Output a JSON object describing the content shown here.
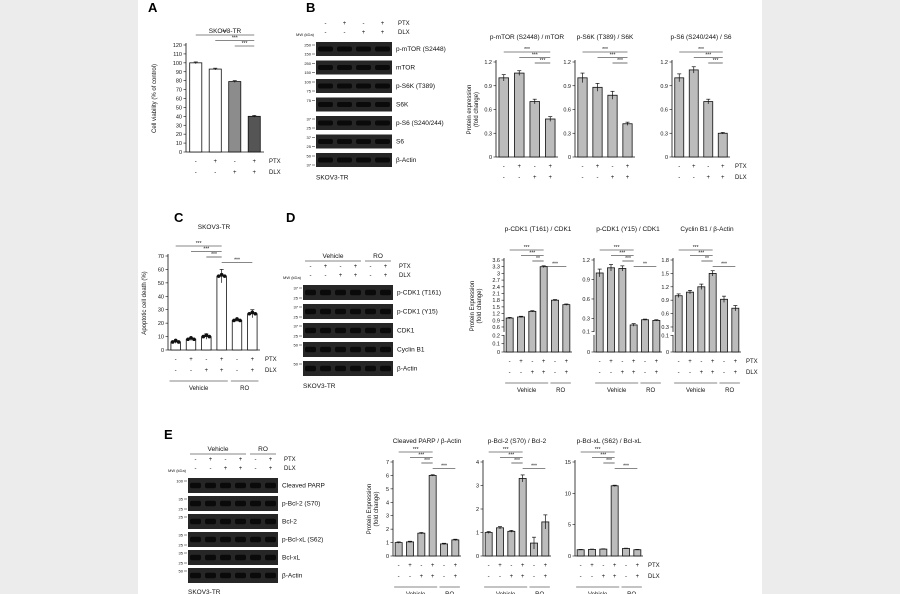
{
  "panel_letters": [
    "A",
    "B",
    "C",
    "D",
    "E"
  ],
  "cell_line": "SKOV3-TR",
  "markers": {
    "ptx": "PTX",
    "dlx": "DLX",
    "mw": "MW (kDa)",
    "vehicle": "Vehicle",
    "ro": "RO"
  },
  "signs": {
    "plus": "+",
    "minus": "-"
  },
  "sig": {
    "three": "***",
    "two": "**"
  },
  "colors": {
    "white": "#ffffff",
    "grey": "#8c8c8c",
    "dark": "#555555",
    "bar": "#bcbcbc",
    "blot": "#262626"
  },
  "blots": {
    "B": {
      "lanes": 4,
      "ptx": [
        "-",
        "+",
        "-",
        "+"
      ],
      "dlx": [
        "-",
        "-",
        "+",
        "+"
      ],
      "bands": [
        {
          "label": "p-mTOR (S2448)",
          "mw": [
            "250",
            "150"
          ]
        },
        {
          "label": "mTOR",
          "mw": [
            "250",
            "150"
          ]
        },
        {
          "label": "p-S6K (T389)",
          "mw": [
            "100",
            "75"
          ]
        },
        {
          "label": "S6K",
          "mw": [
            "75"
          ]
        },
        {
          "label": "p-S6 (S240/244)",
          "mw": [
            "37",
            "25"
          ]
        },
        {
          "label": "S6",
          "mw": [
            "37",
            "25"
          ]
        },
        {
          "label": "β-Actin",
          "mw": [
            "50",
            "37"
          ]
        }
      ]
    },
    "D": {
      "lanes": 6,
      "ptx": [
        "-",
        "+",
        "-",
        "+",
        "-",
        "+"
      ],
      "dlx": [
        "-",
        "-",
        "+",
        "+",
        "-",
        "+"
      ],
      "groups": [
        "Vehicle",
        "RO"
      ],
      "bands": [
        {
          "label": "p-CDK1 (T161)",
          "mw": [
            "37",
            "25"
          ]
        },
        {
          "label": "p-CDK1 (Y15)",
          "mw": [
            "37",
            "25"
          ]
        },
        {
          "label": "CDK1",
          "mw": [
            "37",
            "25"
          ]
        },
        {
          "label": "Cyclin B1",
          "mw": [
            "50"
          ]
        },
        {
          "label": "β-Actin",
          "mw": [
            "50"
          ]
        }
      ]
    },
    "E": {
      "lanes": 6,
      "ptx": [
        "-",
        "+",
        "-",
        "+",
        "-",
        "+"
      ],
      "dlx": [
        "-",
        "-",
        "+",
        "+",
        "-",
        "+"
      ],
      "groups": [
        "Vehicle",
        "RO"
      ],
      "bands": [
        {
          "label": "Cleaved PARP",
          "mw": [
            "100"
          ]
        },
        {
          "label": "p-Bcl-2 (S70)",
          "mw": [
            "35",
            "25"
          ]
        },
        {
          "label": "Bcl-2",
          "mw": [
            "25"
          ]
        },
        {
          "label": "p-Bcl-xL (S62)",
          "mw": [
            "35",
            "25"
          ]
        },
        {
          "label": "Bcl-xL",
          "mw": [
            "35",
            "25"
          ]
        },
        {
          "label": "β-Actin",
          "mw": [
            "50"
          ]
        }
      ]
    }
  },
  "chart_data": [
    {
      "id": "A",
      "type": "bar",
      "title": "SKOV3-TR",
      "ylabel": "Cell viability (% of control)",
      "ylim": [
        0,
        120
      ],
      "yticks": [
        0,
        10,
        20,
        30,
        40,
        50,
        60,
        70,
        80,
        90,
        100,
        110,
        120
      ],
      "ptx": [
        "-",
        "+",
        "-",
        "+"
      ],
      "dlx": [
        "-",
        "-",
        "+",
        "+"
      ],
      "values": [
        100,
        93,
        79,
        40
      ],
      "errors": [
        1,
        1,
        1,
        1
      ],
      "colors": [
        "#ffffff",
        "#ffffff",
        "#8c8c8c",
        "#555555"
      ],
      "sig": [
        [
          0,
          3,
          "***"
        ],
        [
          1,
          3,
          "***"
        ],
        [
          2,
          3,
          "***"
        ]
      ]
    },
    {
      "id": "B1",
      "type": "bar",
      "title": "p-mTOR (S2448) / mTOR",
      "ylabel": "Protein expression (fold change)",
      "ylim": [
        0,
        1.2
      ],
      "yticks": [
        0,
        0.3,
        0.6,
        0.9,
        1.2
      ],
      "ptx": [
        "-",
        "+",
        "-",
        "+"
      ],
      "dlx": [
        "-",
        "-",
        "+",
        "+"
      ],
      "values": [
        1.0,
        1.06,
        0.7,
        0.48
      ],
      "errors": [
        0.04,
        0.03,
        0.03,
        0.03
      ],
      "sig": [
        [
          0,
          3,
          "***"
        ],
        [
          1,
          3,
          "***"
        ],
        [
          2,
          3,
          "***"
        ]
      ]
    },
    {
      "id": "B2",
      "type": "bar",
      "title": "p-S6K (T389) / S6K",
      "ylim": [
        0,
        1.2
      ],
      "yticks": [
        0,
        0.3,
        0.6,
        0.9,
        1.2
      ],
      "ptx": [
        "-",
        "+",
        "-",
        "+"
      ],
      "dlx": [
        "-",
        "-",
        "+",
        "+"
      ],
      "values": [
        1.0,
        0.88,
        0.78,
        0.42
      ],
      "errors": [
        0.06,
        0.05,
        0.05,
        0.02
      ],
      "sig": [
        [
          0,
          3,
          "***"
        ],
        [
          1,
          3,
          "***"
        ],
        [
          2,
          3,
          "***"
        ]
      ]
    },
    {
      "id": "B3",
      "type": "bar",
      "title": "p-S6 (S240/244) / S6",
      "ylim": [
        0,
        1.2
      ],
      "yticks": [
        0,
        0.3,
        0.6,
        0.9,
        1.2
      ],
      "ptx": [
        "-",
        "+",
        "-",
        "+"
      ],
      "dlx": [
        "-",
        "-",
        "+",
        "+"
      ],
      "values": [
        1.0,
        1.1,
        0.7,
        0.3
      ],
      "errors": [
        0.05,
        0.04,
        0.03,
        0.01
      ],
      "sig": [
        [
          0,
          3,
          "***"
        ],
        [
          1,
          3,
          "***"
        ],
        [
          2,
          3,
          "***"
        ]
      ]
    },
    {
      "id": "C",
      "type": "scatter-bar",
      "title": "SKOV3-TR",
      "ylabel": "Apoptotic cell death (%)",
      "ylim": [
        0,
        70
      ],
      "yticks": [
        0,
        10,
        20,
        30,
        40,
        50,
        60,
        70
      ],
      "ptx": [
        "-",
        "+",
        "-",
        "+",
        "-",
        "+"
      ],
      "dlx": [
        "-",
        "-",
        "+",
        "+",
        "-",
        "+"
      ],
      "groups": [
        "Vehicle",
        "RO"
      ],
      "values": [
        6,
        8,
        10,
        55,
        22,
        27
      ],
      "errors": [
        1,
        1,
        2,
        5,
        1,
        3
      ],
      "colors": [
        "#ffffff",
        "#ffffff",
        "#ffffff",
        "#ffffff",
        "#ffffff",
        "#ffffff"
      ],
      "sig": [
        [
          0,
          3,
          "***"
        ],
        [
          1,
          3,
          "***"
        ],
        [
          2,
          3,
          "***"
        ],
        [
          3,
          5,
          "***"
        ]
      ]
    },
    {
      "id": "D1",
      "type": "bar",
      "title": "p-CDK1 (T161) / CDK1",
      "ylabel": "Protein Expression (fold change)",
      "ylim": [
        0,
        3.6
      ],
      "axis_break": {
        "from": 0.2,
        "to": 0.4
      },
      "yticks": [
        0.0,
        0.1,
        0.2,
        0.6,
        0.9,
        1.2,
        1.5,
        1.8,
        2.1,
        2.4,
        2.7,
        3.0,
        3.3,
        3.6
      ],
      "ptx": [
        "-",
        "+",
        "-",
        "+",
        "-",
        "+"
      ],
      "dlx": [
        "-",
        "-",
        "+",
        "+",
        "-",
        "+"
      ],
      "groups": [
        "Vehicle",
        "RO"
      ],
      "values": [
        1.0,
        1.05,
        1.3,
        3.3,
        1.8,
        1.6
      ],
      "errors": [
        0.03,
        0.03,
        0.03,
        0.04,
        0.03,
        0.03
      ],
      "sig": [
        [
          0,
          3,
          "***"
        ],
        [
          1,
          3,
          "***"
        ],
        [
          2,
          3,
          "**"
        ],
        [
          3,
          5,
          "***"
        ]
      ]
    },
    {
      "id": "D2",
      "type": "bar",
      "title": "p-CDK1 (Y15) / CDK1",
      "ylim": [
        0,
        1.2
      ],
      "axis_break": {
        "from": 0.05,
        "to": 0.1
      },
      "yticks": [
        0.0,
        0.1,
        0.3,
        0.6,
        0.9,
        1.2
      ],
      "ptx": [
        "-",
        "+",
        "-",
        "+",
        "-",
        "+"
      ],
      "dlx": [
        "-",
        "-",
        "+",
        "+",
        "-",
        "+"
      ],
      "groups": [
        "Vehicle",
        "RO"
      ],
      "values": [
        1.0,
        1.08,
        1.07,
        0.2,
        0.28,
        0.27
      ],
      "errors": [
        0.06,
        0.05,
        0.04,
        0.02,
        0.01,
        0.01
      ],
      "sig": [
        [
          0,
          3,
          "***"
        ],
        [
          1,
          3,
          "***"
        ],
        [
          2,
          3,
          "***"
        ],
        [
          3,
          5,
          "**"
        ]
      ]
    },
    {
      "id": "D3",
      "type": "bar",
      "title": "Cyclin B1 / β-Actin",
      "ylim": [
        0,
        1.8
      ],
      "axis_break": {
        "from": 0.1,
        "to": 0.2
      },
      "yticks": [
        0.0,
        0.1,
        0.3,
        0.6,
        0.9,
        1.2,
        1.5,
        1.8
      ],
      "ptx": [
        "-",
        "+",
        "-",
        "+",
        "-",
        "+"
      ],
      "dlx": [
        "-",
        "-",
        "+",
        "+",
        "-",
        "+"
      ],
      "groups": [
        "Vehicle",
        "RO"
      ],
      "values": [
        1.0,
        1.08,
        1.2,
        1.5,
        0.92,
        0.72
      ],
      "errors": [
        0.04,
        0.04,
        0.06,
        0.06,
        0.07,
        0.06
      ],
      "sig": [
        [
          0,
          3,
          "***"
        ],
        [
          1,
          3,
          "***"
        ],
        [
          2,
          3,
          "**"
        ],
        [
          3,
          5,
          "***"
        ]
      ]
    },
    {
      "id": "E1",
      "type": "bar",
      "title": "Cleaved PARP / β-Actin",
      "ylabel": "Protein Expression (fold change)",
      "ylim": [
        0,
        7
      ],
      "yticks": [
        0,
        1,
        2,
        3,
        4,
        5,
        6,
        7
      ],
      "ptx": [
        "-",
        "+",
        "-",
        "+",
        "-",
        "+"
      ],
      "dlx": [
        "-",
        "-",
        "+",
        "+",
        "-",
        "+"
      ],
      "groups": [
        "Vehicle",
        "RO"
      ],
      "values": [
        1.0,
        1.05,
        1.7,
        6.0,
        0.9,
        1.2
      ],
      "errors": [
        0.05,
        0.05,
        0.05,
        0.05,
        0.05,
        0.05
      ],
      "sig": [
        [
          0,
          3,
          "***"
        ],
        [
          1,
          3,
          "***"
        ],
        [
          2,
          3,
          "***"
        ],
        [
          3,
          5,
          "***"
        ]
      ]
    },
    {
      "id": "E2",
      "type": "bar",
      "title": "p-Bcl-2 (S70) / Bcl-2",
      "ylim": [
        0,
        4
      ],
      "yticks": [
        0,
        1,
        2,
        3,
        4
      ],
      "ptx": [
        "-",
        "+",
        "-",
        "+",
        "-",
        "+"
      ],
      "dlx": [
        "-",
        "-",
        "+",
        "+",
        "-",
        "+"
      ],
      "groups": [
        "Vehicle",
        "RO"
      ],
      "values": [
        1.0,
        1.2,
        1.05,
        3.3,
        0.55,
        1.45
      ],
      "errors": [
        0.04,
        0.05,
        0.04,
        0.15,
        0.25,
        0.3
      ],
      "sig": [
        [
          0,
          3,
          "***"
        ],
        [
          1,
          3,
          "***"
        ],
        [
          2,
          3,
          "***"
        ],
        [
          3,
          5,
          "***"
        ]
      ]
    },
    {
      "id": "E3",
      "type": "bar",
      "title": "p-Bcl-xL (S62) / Bcl-xL",
      "ylim": [
        0,
        15
      ],
      "yticks": [
        0,
        5,
        10,
        15
      ],
      "ptx": [
        "-",
        "+",
        "-",
        "+",
        "-",
        "+"
      ],
      "dlx": [
        "-",
        "-",
        "+",
        "+",
        "-",
        "+"
      ],
      "groups": [
        "Vehicle",
        "RO"
      ],
      "values": [
        1.0,
        1.05,
        1.1,
        11.2,
        1.2,
        1.0
      ],
      "errors": [
        0.05,
        0.05,
        0.05,
        0.1,
        0.05,
        0.05
      ],
      "sig": [
        [
          0,
          3,
          "***"
        ],
        [
          1,
          3,
          "***"
        ],
        [
          2,
          3,
          "***"
        ],
        [
          3,
          5,
          "***"
        ]
      ]
    }
  ]
}
